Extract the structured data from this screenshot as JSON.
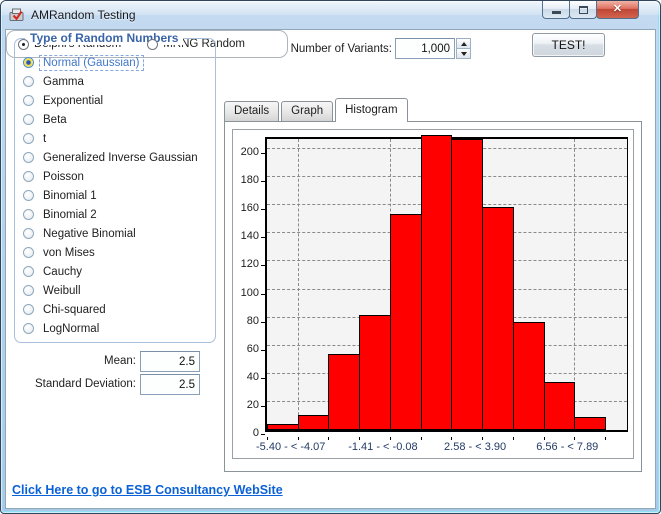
{
  "window": {
    "title": "AMRandom Testing",
    "buttons": {
      "minimize": "minimize",
      "maximize": "maximize",
      "close": "close"
    }
  },
  "sidebar": {
    "title": "Type of Random Numbers",
    "options": [
      {
        "label": "Normal (Gaussian)",
        "selected": true
      },
      {
        "label": "Gamma",
        "selected": false
      },
      {
        "label": "Exponential",
        "selected": false
      },
      {
        "label": "Beta",
        "selected": false
      },
      {
        "label": "t",
        "selected": false
      },
      {
        "label": "Generalized Inverse Gaussian",
        "selected": false
      },
      {
        "label": "Poisson",
        "selected": false
      },
      {
        "label": "Binomial 1",
        "selected": false
      },
      {
        "label": "Binomial 2",
        "selected": false
      },
      {
        "label": "Negative Binomial",
        "selected": false
      },
      {
        "label": "von Mises",
        "selected": false
      },
      {
        "label": "Cauchy",
        "selected": false
      },
      {
        "label": "Weibull",
        "selected": false
      },
      {
        "label": "Chi-squared",
        "selected": false
      },
      {
        "label": "LogNormal",
        "selected": false
      }
    ]
  },
  "params": {
    "mean_label": "Mean:",
    "mean_value": "2.5",
    "stddev_label": "Standard Deviation:",
    "stddev_value": "2.5"
  },
  "controls": {
    "variants_label": "Number of Variants:",
    "variants_value": "1,000",
    "test_button": "TEST!"
  },
  "rng": {
    "options": [
      {
        "label": "Delphi's Random",
        "selected": true
      },
      {
        "label": "MRNG Random",
        "selected": false
      }
    ]
  },
  "tabs": [
    {
      "label": "Details",
      "active": false
    },
    {
      "label": "Graph",
      "active": false
    },
    {
      "label": "Histogram",
      "active": true
    }
  ],
  "footer": {
    "link": "Click Here to go to ESB Consultancy WebSite"
  },
  "colors": {
    "bar_fill": "#FF0000",
    "bar_border": "#000000",
    "groupbox_title": "#3A64A8",
    "selected_option_text": "#4177C9",
    "link": "#0B61D6",
    "close_button": "#C8473A"
  },
  "chart_data": {
    "type": "bar",
    "title": "",
    "xlabel": "",
    "ylabel": "",
    "values": [
      4,
      11,
      54,
      82,
      154,
      210,
      207,
      159,
      77,
      34,
      9
    ],
    "bin_labels": [
      "-5.40 - < -4.07",
      "-1.41 - < -0.08",
      "2.58 - < 3.90",
      "6.56 - < 7.89"
    ],
    "bin_label_boundary_index": [
      1,
      4,
      7,
      10
    ],
    "ylim": [
      0,
      210
    ],
    "ytick_step": 20,
    "ytick_max": 200,
    "grid": "dashed",
    "legend": "none"
  }
}
